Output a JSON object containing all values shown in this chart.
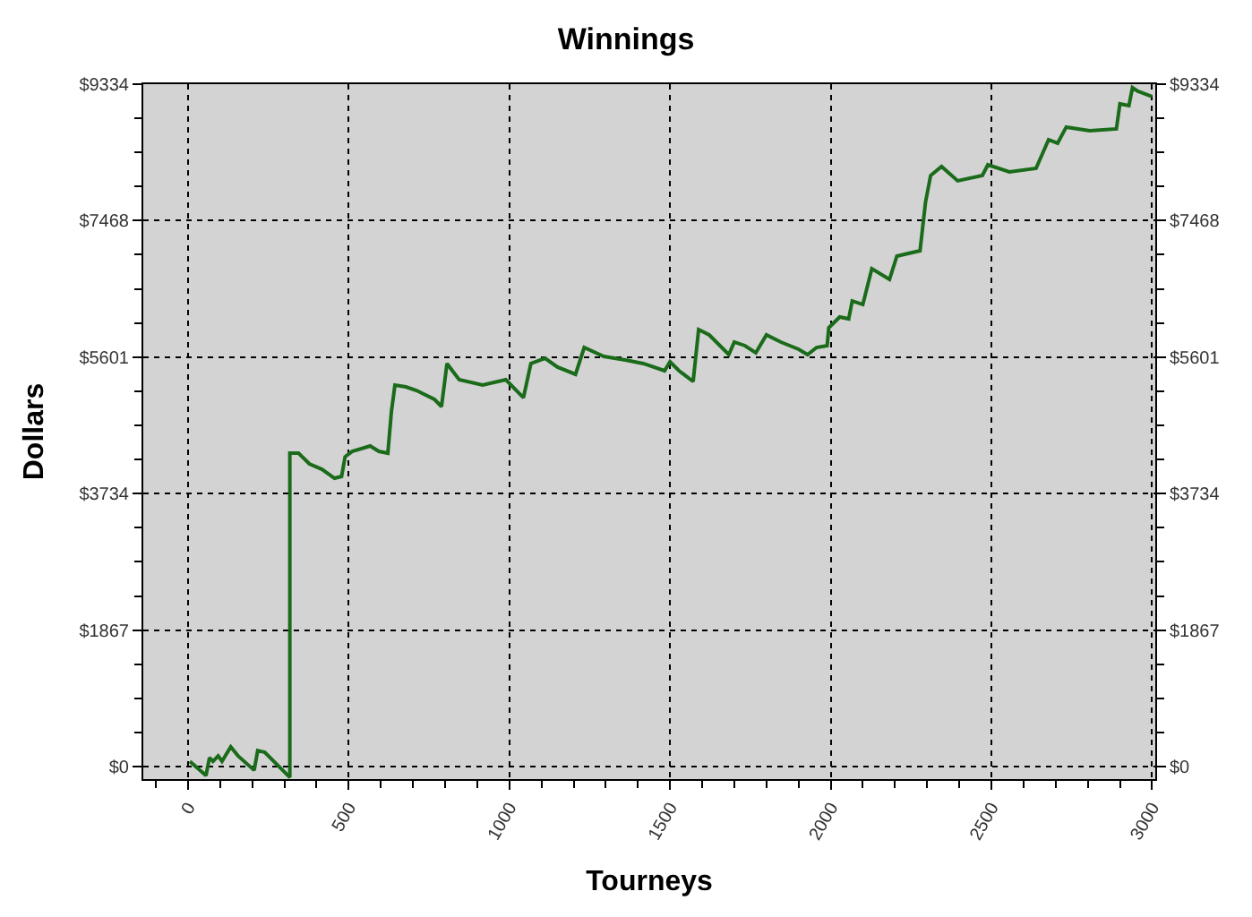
{
  "chart_data": {
    "type": "line",
    "title": "Winnings",
    "xlabel": "Tourneys",
    "ylabel": "Dollars",
    "x": [
      6,
      56,
      67,
      78,
      94,
      106,
      133,
      156,
      206,
      217,
      239,
      306,
      317,
      317,
      344,
      378,
      417,
      456,
      478,
      489,
      511,
      567,
      594,
      622,
      633,
      644,
      678,
      711,
      767,
      789,
      806,
      844,
      917,
      989,
      1044,
      1067,
      1111,
      1150,
      1206,
      1233,
      1294,
      1361,
      1417,
      1483,
      1500,
      1528,
      1572,
      1589,
      1622,
      1683,
      1700,
      1733,
      1767,
      1800,
      1845,
      1900,
      1928,
      1956,
      1989,
      1994,
      2028,
      2056,
      2067,
      2100,
      2128,
      2183,
      2206,
      2278,
      2295,
      2311,
      2345,
      2395,
      2472,
      2489,
      2556,
      2639,
      2678,
      2706,
      2733,
      2806,
      2889,
      2900,
      2928,
      2939,
      2956,
      3000
    ],
    "series": [
      {
        "color": "#1a6b1a",
        "values": [
          73,
          -122,
          122,
          73,
          147,
          73,
          270,
          147,
          -49,
          220,
          196,
          -98,
          -147,
          4288,
          4288,
          4141,
          4067,
          3945,
          3969,
          4239,
          4312,
          4386,
          4312,
          4288,
          4851,
          5219,
          5194,
          5145,
          5023,
          4925,
          5513,
          5292,
          5219,
          5292,
          5047,
          5513,
          5586,
          5464,
          5366,
          5733,
          5611,
          5562,
          5513,
          5415,
          5537,
          5415,
          5268,
          5978,
          5905,
          5635,
          5807,
          5758,
          5660,
          5905,
          5807,
          5709,
          5635,
          5733,
          5758,
          6003,
          6150,
          6125,
          6370,
          6321,
          6811,
          6664,
          6983,
          7056,
          7718,
          8085,
          8208,
          8012,
          8085,
          8232,
          8134,
          8183,
          8575,
          8526,
          8747,
          8698,
          8722,
          9065,
          9041,
          9286,
          9237,
          9163
        ]
      }
    ],
    "xlim": [
      -139,
      3010
    ],
    "xticks": [
      0,
      500,
      1000,
      1500,
      2000,
      2500,
      3000
    ],
    "ylim": [
      -170,
      9334
    ],
    "yticks": [
      {
        "value": 0,
        "label": "$0"
      },
      {
        "value": 1867,
        "label": "$1867"
      },
      {
        "value": 3734,
        "label": "$3734"
      },
      {
        "value": 5601,
        "label": "$5601"
      },
      {
        "value": 7468,
        "label": "$7468"
      },
      {
        "value": 9334,
        "label": "$9334"
      }
    ],
    "y2lim": [
      -170,
      9334
    ],
    "y2ticks": [
      {
        "value": 0,
        "label": "$0"
      },
      {
        "value": 1867,
        "label": "$1867"
      },
      {
        "value": 3734,
        "label": "$3734"
      },
      {
        "value": 5601,
        "label": "$5601"
      },
      {
        "value": 7468,
        "label": "$7468"
      },
      {
        "value": 9334,
        "label": "$9334"
      }
    ],
    "grid": true,
    "marker": "none",
    "line_style": "solid"
  }
}
